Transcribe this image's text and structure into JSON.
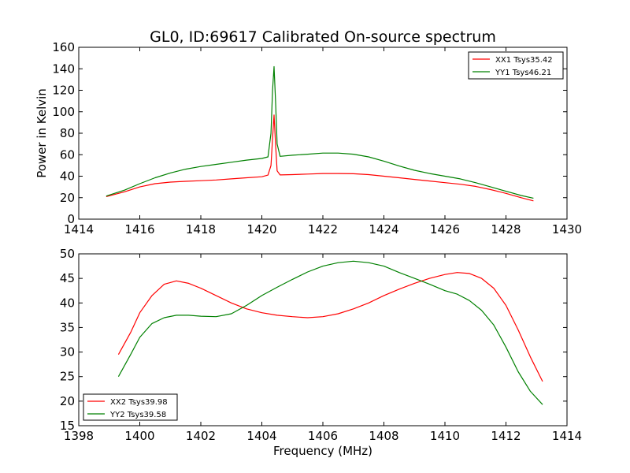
{
  "chart_data": [
    {
      "type": "line",
      "title": "GL0, ID:69617 Calibrated On-source spectrum",
      "xlabel": "",
      "ylabel": "Power in Kelvin",
      "xlim": [
        1414,
        1430
      ],
      "ylim": [
        0,
        160
      ],
      "xticks": [
        1414,
        1416,
        1418,
        1420,
        1422,
        1424,
        1426,
        1428,
        1430
      ],
      "yticks": [
        0,
        20,
        40,
        60,
        80,
        100,
        120,
        140,
        160
      ],
      "legend_position": "top-right",
      "series": [
        {
          "name": "XX1 Tsys35.42",
          "color": "#ff0000",
          "x": [
            1414.9,
            1415.5,
            1416.0,
            1416.5,
            1417.0,
            1417.5,
            1418.0,
            1418.5,
            1419.0,
            1419.5,
            1420.0,
            1420.2,
            1420.3,
            1420.35,
            1420.4,
            1420.45,
            1420.5,
            1420.6,
            1421.0,
            1421.5,
            1422.0,
            1422.5,
            1423.0,
            1423.5,
            1424.0,
            1424.5,
            1425.0,
            1425.5,
            1426.0,
            1426.5,
            1427.0,
            1427.5,
            1428.0,
            1428.5,
            1428.9
          ],
          "y": [
            21,
            25.5,
            30,
            33,
            34.5,
            35.2,
            35.8,
            36.5,
            37.5,
            38.5,
            39.5,
            41,
            50,
            75,
            97,
            70,
            45,
            41.2,
            41.5,
            42,
            42.5,
            42.5,
            42.3,
            41.5,
            40,
            38.5,
            37,
            35.5,
            34,
            32.5,
            30.5,
            27.5,
            24,
            20,
            17
          ]
        },
        {
          "name": "YY1 Tsys46.21",
          "color": "#008000",
          "x": [
            1414.9,
            1415.5,
            1416.0,
            1416.5,
            1417.0,
            1417.5,
            1418.0,
            1418.5,
            1419.0,
            1419.5,
            1420.0,
            1420.2,
            1420.3,
            1420.35,
            1420.4,
            1420.45,
            1420.5,
            1420.6,
            1421.0,
            1421.5,
            1422.0,
            1422.5,
            1423.0,
            1423.5,
            1424.0,
            1424.5,
            1425.0,
            1425.5,
            1426.0,
            1426.5,
            1427.0,
            1427.5,
            1428.0,
            1428.5,
            1428.9
          ],
          "y": [
            21.5,
            27,
            33,
            38.5,
            43,
            46.5,
            49,
            51,
            53,
            55,
            56.5,
            58,
            80,
            120,
            142,
            110,
            70,
            58.5,
            59.5,
            60.5,
            61.5,
            61.5,
            60.5,
            58,
            54,
            49.5,
            45.5,
            42.5,
            40,
            37.5,
            34,
            30,
            26,
            22,
            19.5
          ]
        }
      ]
    },
    {
      "type": "line",
      "title": "",
      "xlabel": "Frequency (MHz)",
      "ylabel": "",
      "xlim": [
        1398,
        1414
      ],
      "ylim": [
        15,
        50
      ],
      "xticks": [
        1398,
        1400,
        1402,
        1404,
        1406,
        1408,
        1410,
        1412,
        1414
      ],
      "yticks": [
        15,
        20,
        25,
        30,
        35,
        40,
        45,
        50
      ],
      "legend_position": "bottom-left",
      "series": [
        {
          "name": "XX2 Tsys39.98",
          "color": "#ff0000",
          "x": [
            1399.3,
            1399.7,
            1400.0,
            1400.4,
            1400.8,
            1401.2,
            1401.6,
            1402.0,
            1402.5,
            1403.0,
            1403.5,
            1404.0,
            1404.5,
            1405.0,
            1405.5,
            1406.0,
            1406.5,
            1407.0,
            1407.5,
            1408.0,
            1408.5,
            1409.0,
            1409.5,
            1410.0,
            1410.4,
            1410.8,
            1411.2,
            1411.6,
            1412.0,
            1412.4,
            1412.8,
            1413.2
          ],
          "y": [
            29.5,
            34,
            38,
            41.5,
            43.8,
            44.5,
            44,
            43,
            41.5,
            40,
            38.8,
            38,
            37.5,
            37.2,
            37,
            37.2,
            37.8,
            38.8,
            40,
            41.5,
            42.8,
            44,
            45,
            45.8,
            46.2,
            46,
            45,
            43,
            39.5,
            34.5,
            29,
            24
          ]
        },
        {
          "name": "YY2 Tsys39.58",
          "color": "#008000",
          "x": [
            1399.3,
            1399.7,
            1400.0,
            1400.4,
            1400.8,
            1401.2,
            1401.6,
            1402.0,
            1402.5,
            1403.0,
            1403.5,
            1404.0,
            1404.5,
            1405.0,
            1405.5,
            1406.0,
            1406.5,
            1407.0,
            1407.5,
            1408.0,
            1408.5,
            1409.0,
            1409.5,
            1410.0,
            1410.4,
            1410.8,
            1411.2,
            1411.6,
            1412.0,
            1412.4,
            1412.8,
            1413.2
          ],
          "y": [
            25,
            29.5,
            33,
            35.8,
            37,
            37.5,
            37.5,
            37.3,
            37.2,
            37.8,
            39.5,
            41.5,
            43.2,
            44.8,
            46.3,
            47.5,
            48.2,
            48.5,
            48.2,
            47.5,
            46.2,
            45,
            43.8,
            42.5,
            41.8,
            40.5,
            38.5,
            35.5,
            31,
            26,
            22,
            19.3
          ]
        }
      ]
    }
  ]
}
